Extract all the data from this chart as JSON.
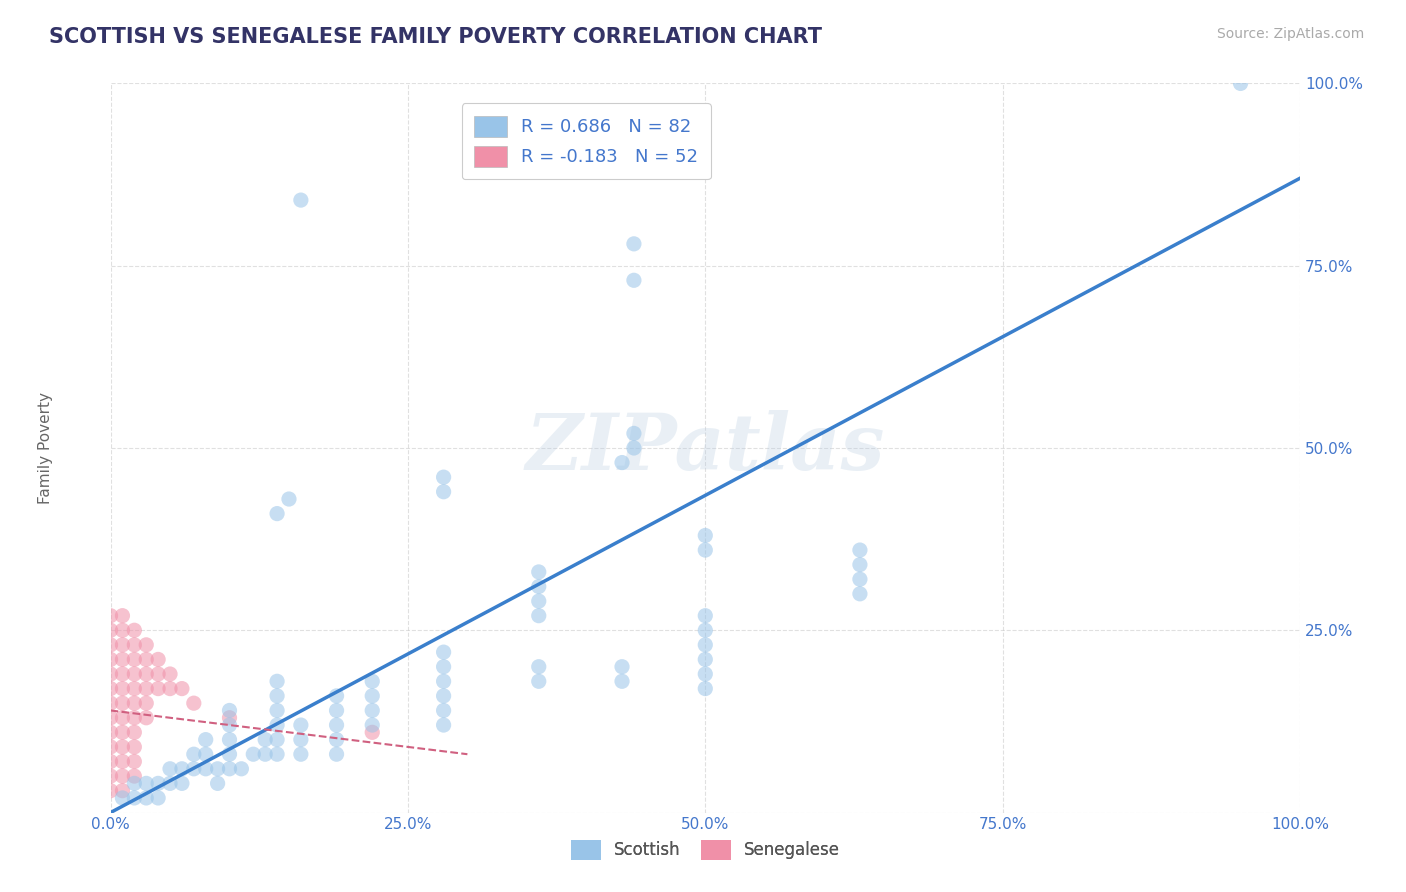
{
  "title": "SCOTTISH VS SENEGALESE FAMILY POVERTY CORRELATION CHART",
  "source": "Source: ZipAtlas.com",
  "ylabel": "Family Poverty",
  "xlim": [
    0,
    1.0
  ],
  "ylim": [
    0,
    1.0
  ],
  "xticks": [
    0.0,
    0.25,
    0.5,
    0.75,
    1.0
  ],
  "yticks": [
    0.0,
    0.25,
    0.5,
    0.75,
    1.0
  ],
  "xticklabels": [
    "0.0%",
    "25.0%",
    "50.0%",
    "75.0%",
    "100.0%"
  ],
  "yticklabels": [
    "",
    "25.0%",
    "50.0%",
    "75.0%",
    "100.0%"
  ],
  "watermark": "ZIPatlas",
  "legend_blue_R": "0.686",
  "legend_blue_N": "82",
  "legend_pink_R": "-0.183",
  "legend_pink_N": "52",
  "blue_scatter": [
    [
      0.95,
      1.0
    ],
    [
      0.16,
      0.84
    ],
    [
      0.44,
      0.78
    ],
    [
      0.44,
      0.73
    ],
    [
      0.44,
      0.52
    ],
    [
      0.44,
      0.5
    ],
    [
      0.43,
      0.48
    ],
    [
      0.28,
      0.46
    ],
    [
      0.28,
      0.44
    ],
    [
      0.15,
      0.43
    ],
    [
      0.14,
      0.41
    ],
    [
      0.5,
      0.38
    ],
    [
      0.5,
      0.36
    ],
    [
      0.36,
      0.33
    ],
    [
      0.36,
      0.31
    ],
    [
      0.36,
      0.29
    ],
    [
      0.36,
      0.27
    ],
    [
      0.63,
      0.36
    ],
    [
      0.63,
      0.34
    ],
    [
      0.63,
      0.32
    ],
    [
      0.63,
      0.3
    ],
    [
      0.5,
      0.27
    ],
    [
      0.5,
      0.25
    ],
    [
      0.5,
      0.23
    ],
    [
      0.5,
      0.21
    ],
    [
      0.5,
      0.19
    ],
    [
      0.5,
      0.17
    ],
    [
      0.28,
      0.22
    ],
    [
      0.28,
      0.2
    ],
    [
      0.28,
      0.18
    ],
    [
      0.28,
      0.16
    ],
    [
      0.28,
      0.14
    ],
    [
      0.28,
      0.12
    ],
    [
      0.22,
      0.18
    ],
    [
      0.22,
      0.16
    ],
    [
      0.22,
      0.14
    ],
    [
      0.22,
      0.12
    ],
    [
      0.14,
      0.18
    ],
    [
      0.14,
      0.16
    ],
    [
      0.14,
      0.14
    ],
    [
      0.14,
      0.12
    ],
    [
      0.14,
      0.1
    ],
    [
      0.14,
      0.08
    ],
    [
      0.1,
      0.14
    ],
    [
      0.1,
      0.12
    ],
    [
      0.1,
      0.1
    ],
    [
      0.1,
      0.08
    ],
    [
      0.1,
      0.06
    ],
    [
      0.08,
      0.1
    ],
    [
      0.08,
      0.08
    ],
    [
      0.08,
      0.06
    ],
    [
      0.07,
      0.08
    ],
    [
      0.07,
      0.06
    ],
    [
      0.06,
      0.06
    ],
    [
      0.06,
      0.04
    ],
    [
      0.05,
      0.06
    ],
    [
      0.05,
      0.04
    ],
    [
      0.04,
      0.04
    ],
    [
      0.04,
      0.02
    ],
    [
      0.03,
      0.04
    ],
    [
      0.03,
      0.02
    ],
    [
      0.02,
      0.04
    ],
    [
      0.02,
      0.02
    ],
    [
      0.01,
      0.02
    ],
    [
      0.19,
      0.16
    ],
    [
      0.19,
      0.14
    ],
    [
      0.19,
      0.12
    ],
    [
      0.19,
      0.1
    ],
    [
      0.19,
      0.08
    ],
    [
      0.16,
      0.12
    ],
    [
      0.16,
      0.1
    ],
    [
      0.16,
      0.08
    ],
    [
      0.13,
      0.1
    ],
    [
      0.13,
      0.08
    ],
    [
      0.12,
      0.08
    ],
    [
      0.11,
      0.06
    ],
    [
      0.09,
      0.06
    ],
    [
      0.09,
      0.04
    ],
    [
      0.36,
      0.2
    ],
    [
      0.36,
      0.18
    ],
    [
      0.43,
      0.2
    ],
    [
      0.43,
      0.18
    ]
  ],
  "pink_scatter": [
    [
      0.0,
      0.27
    ],
    [
      0.0,
      0.25
    ],
    [
      0.0,
      0.23
    ],
    [
      0.0,
      0.21
    ],
    [
      0.0,
      0.19
    ],
    [
      0.0,
      0.17
    ],
    [
      0.0,
      0.15
    ],
    [
      0.0,
      0.13
    ],
    [
      0.0,
      0.11
    ],
    [
      0.0,
      0.09
    ],
    [
      0.0,
      0.07
    ],
    [
      0.0,
      0.05
    ],
    [
      0.0,
      0.03
    ],
    [
      0.01,
      0.27
    ],
    [
      0.01,
      0.25
    ],
    [
      0.01,
      0.23
    ],
    [
      0.01,
      0.21
    ],
    [
      0.01,
      0.19
    ],
    [
      0.01,
      0.17
    ],
    [
      0.01,
      0.15
    ],
    [
      0.01,
      0.13
    ],
    [
      0.01,
      0.11
    ],
    [
      0.01,
      0.09
    ],
    [
      0.01,
      0.07
    ],
    [
      0.01,
      0.05
    ],
    [
      0.01,
      0.03
    ],
    [
      0.02,
      0.25
    ],
    [
      0.02,
      0.23
    ],
    [
      0.02,
      0.21
    ],
    [
      0.02,
      0.19
    ],
    [
      0.02,
      0.17
    ],
    [
      0.02,
      0.15
    ],
    [
      0.02,
      0.13
    ],
    [
      0.02,
      0.11
    ],
    [
      0.02,
      0.09
    ],
    [
      0.02,
      0.07
    ],
    [
      0.02,
      0.05
    ],
    [
      0.03,
      0.23
    ],
    [
      0.03,
      0.21
    ],
    [
      0.03,
      0.19
    ],
    [
      0.03,
      0.17
    ],
    [
      0.03,
      0.15
    ],
    [
      0.03,
      0.13
    ],
    [
      0.04,
      0.21
    ],
    [
      0.04,
      0.19
    ],
    [
      0.04,
      0.17
    ],
    [
      0.05,
      0.19
    ],
    [
      0.05,
      0.17
    ],
    [
      0.06,
      0.17
    ],
    [
      0.07,
      0.15
    ],
    [
      0.1,
      0.13
    ],
    [
      0.22,
      0.11
    ]
  ],
  "blue_line_x": [
    0.0,
    1.0
  ],
  "blue_line_y": [
    0.0,
    0.87
  ],
  "pink_line_x": [
    0.0,
    0.3
  ],
  "pink_line_y": [
    0.14,
    0.08
  ],
  "blue_line_color": "#3a7fcc",
  "pink_line_color": "#d06080",
  "scatter_blue_color": "#99c4e8",
  "scatter_pink_color": "#f090a8",
  "scatter_alpha": 0.55,
  "scatter_size": 120,
  "background_color": "#ffffff",
  "grid_color": "#cccccc",
  "title_color": "#333366",
  "axis_tick_color": "#4477cc",
  "title_fontsize": 15,
  "label_fontsize": 11,
  "tick_fontsize": 11,
  "source_fontsize": 10
}
